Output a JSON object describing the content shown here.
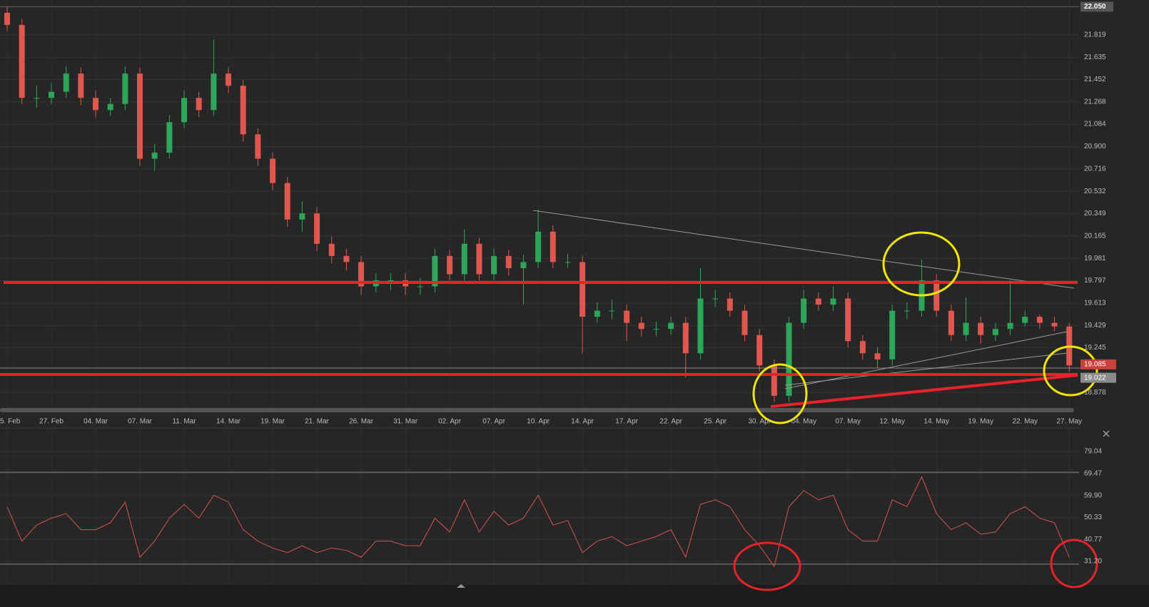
{
  "chart_data": [
    {
      "type": "candlestick",
      "up_color": "#2ea65a",
      "down_color": "#e0574f",
      "ylim": [
        18.703,
        22.105
      ],
      "yticks": [
        21.819,
        21.635,
        21.452,
        21.268,
        21.084,
        {
          "value": 20.9,
          "label": "20.900"
        },
        20.716,
        20.532,
        20.349,
        20.165,
        19.981,
        19.797,
        19.613,
        19.429,
        19.245,
        18.878
      ],
      "grid": true,
      "top_label": {
        "value": 22.05,
        "label": "22.050"
      },
      "price_labels": [
        {
          "value": 19.085,
          "label": "19.085",
          "color": "#c9413b"
        },
        {
          "value": 19.022,
          "label": "19.022",
          "color": "#8a8a8a"
        }
      ],
      "date_labels": [
        "5. Feb",
        "27. Feb",
        "04. Mar",
        "07. Mar",
        "11. Mar",
        "14. Mar",
        "19. Mar",
        "21. Mar",
        "26. Mar",
        "31. Mar",
        "02. Apr",
        "07. Apr",
        "10. Apr",
        "14. Apr",
        "17. Apr",
        "22. Apr",
        "25. Apr",
        "30. Apr",
        "04. May",
        "07. May",
        "12. May",
        "14. May",
        "19. May",
        "22. May",
        "27. May"
      ],
      "candles": [
        [
          22.0,
          22.05,
          21.85,
          21.9
        ],
        [
          21.9,
          21.95,
          21.25,
          21.3
        ],
        [
          21.3,
          21.4,
          21.22,
          21.3
        ],
        [
          21.3,
          21.42,
          21.25,
          21.35
        ],
        [
          21.35,
          21.56,
          21.3,
          21.5
        ],
        [
          21.5,
          21.55,
          21.24,
          21.3
        ],
        [
          21.3,
          21.36,
          21.14,
          21.2
        ],
        [
          21.2,
          21.3,
          21.15,
          21.25
        ],
        [
          21.25,
          21.56,
          21.2,
          21.5
        ],
        [
          21.5,
          21.55,
          20.74,
          20.8
        ],
        [
          20.8,
          20.92,
          20.7,
          20.85
        ],
        [
          20.85,
          21.16,
          20.8,
          21.1
        ],
        [
          21.1,
          21.36,
          21.05,
          21.3
        ],
        [
          21.3,
          21.35,
          21.14,
          21.2
        ],
        [
          21.2,
          21.78,
          21.15,
          21.5
        ],
        [
          21.5,
          21.55,
          21.34,
          21.4
        ],
        [
          21.4,
          21.45,
          20.94,
          21.0
        ],
        [
          21.0,
          21.05,
          20.74,
          20.8
        ],
        [
          20.8,
          20.85,
          20.54,
          20.6
        ],
        [
          20.6,
          20.65,
          20.24,
          20.3
        ],
        [
          20.3,
          20.45,
          20.2,
          20.35
        ],
        [
          20.35,
          20.4,
          20.04,
          20.1
        ],
        [
          20.1,
          20.16,
          19.94,
          20.0
        ],
        [
          20.0,
          20.06,
          19.88,
          19.95
        ],
        [
          19.95,
          20.0,
          19.68,
          19.75
        ],
        [
          19.75,
          19.86,
          19.7,
          19.8
        ],
        [
          19.8,
          19.86,
          19.72,
          19.8
        ],
        [
          19.8,
          19.86,
          19.68,
          19.75
        ],
        [
          19.75,
          19.82,
          19.68,
          19.75
        ],
        [
          19.75,
          20.06,
          19.7,
          20.0
        ],
        [
          20.0,
          20.05,
          19.8,
          19.85
        ],
        [
          19.85,
          20.22,
          19.8,
          20.1
        ],
        [
          20.1,
          20.15,
          19.8,
          19.85
        ],
        [
          19.85,
          20.06,
          19.8,
          20.0
        ],
        [
          20.0,
          20.05,
          19.84,
          19.9
        ],
        [
          19.9,
          20.01,
          19.6,
          19.95
        ],
        [
          19.95,
          20.38,
          19.9,
          20.2
        ],
        [
          20.2,
          20.25,
          19.9,
          19.95
        ],
        [
          19.95,
          20.02,
          19.9,
          19.95
        ],
        [
          19.95,
          20.0,
          19.2,
          19.5
        ],
        [
          19.5,
          19.62,
          19.45,
          19.55
        ],
        [
          19.55,
          19.64,
          19.48,
          19.55
        ],
        [
          19.55,
          19.6,
          19.3,
          19.45
        ],
        [
          19.45,
          19.5,
          19.34,
          19.4
        ],
        [
          19.4,
          19.46,
          19.34,
          19.4
        ],
        [
          19.4,
          19.5,
          19.35,
          19.45
        ],
        [
          19.45,
          19.5,
          19.0,
          19.2
        ],
        [
          19.2,
          19.9,
          19.15,
          19.65
        ],
        [
          19.65,
          19.72,
          19.58,
          19.65
        ],
        [
          19.65,
          19.7,
          19.5,
          19.55
        ],
        [
          19.55,
          19.6,
          19.3,
          19.35
        ],
        [
          19.35,
          19.4,
          19.05,
          19.1
        ],
        [
          19.1,
          19.15,
          18.8,
          18.85
        ],
        [
          18.85,
          19.5,
          18.8,
          19.45
        ],
        [
          19.45,
          19.72,
          19.4,
          19.65
        ],
        [
          19.65,
          19.7,
          19.55,
          19.6
        ],
        [
          19.6,
          19.75,
          19.55,
          19.65
        ],
        [
          19.65,
          19.7,
          19.25,
          19.3
        ],
        [
          19.3,
          19.35,
          19.15,
          19.2
        ],
        [
          19.2,
          19.25,
          19.08,
          19.15
        ],
        [
          19.15,
          19.6,
          19.1,
          19.55
        ],
        [
          19.55,
          19.62,
          19.48,
          19.55
        ],
        [
          19.55,
          19.97,
          19.5,
          19.8
        ],
        [
          19.8,
          19.85,
          19.5,
          19.55
        ],
        [
          19.55,
          19.6,
          19.3,
          19.35
        ],
        [
          19.35,
          19.66,
          19.3,
          19.45
        ],
        [
          19.45,
          19.5,
          19.28,
          19.35
        ],
        [
          19.35,
          19.45,
          19.3,
          19.4
        ],
        [
          19.4,
          19.8,
          19.35,
          19.45
        ],
        [
          19.45,
          19.55,
          19.42,
          19.5
        ],
        [
          19.5,
          19.52,
          19.4,
          19.45
        ],
        [
          19.45,
          19.5,
          19.38,
          19.42
        ],
        [
          19.42,
          19.45,
          19.05,
          19.1
        ]
      ]
    },
    {
      "type": "line",
      "color": "#d9534f",
      "ylim": [
        20.95,
        89.29
      ],
      "yticks": [
        79.04,
        69.47,
        {
          "value": 59.9,
          "label": "59.90"
        },
        50.33,
        40.77,
        {
          "value": 31.2,
          "label": "31.20"
        }
      ],
      "levels": [
        70,
        30
      ],
      "values": [
        55,
        40,
        47,
        50,
        52,
        45,
        45,
        48,
        57,
        33,
        40,
        50,
        56,
        50,
        60,
        57,
        45,
        40,
        37,
        35,
        38,
        35,
        37,
        36,
        33,
        40,
        40,
        38,
        38,
        50,
        44,
        58,
        44,
        53,
        47,
        50,
        60,
        47,
        49,
        35,
        40,
        42,
        38,
        40,
        42,
        45,
        33,
        56,
        58,
        55,
        45,
        38,
        29,
        55,
        62,
        58,
        60,
        45,
        40,
        40,
        58,
        55,
        68,
        52,
        45,
        48,
        43,
        44,
        52,
        55,
        50,
        48,
        33
      ]
    }
  ]
}
